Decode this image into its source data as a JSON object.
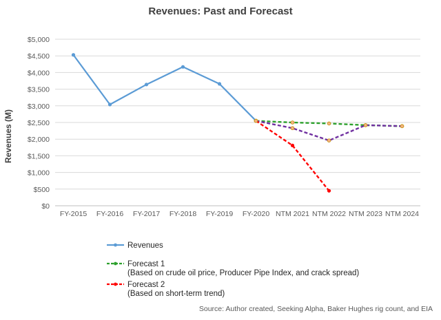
{
  "chart_data": {
    "type": "line",
    "title": "Revenues: Past and Forecast",
    "ylabel": "Revenues (M)",
    "xlabel": "",
    "ylim": [
      0,
      5000
    ],
    "y_ticks": [
      "$0",
      "$500",
      "$1,000",
      "$1,500",
      "$2,000",
      "$2,500",
      "$3,000",
      "$3,500",
      "$4,000",
      "$4,500",
      "$5,000"
    ],
    "categories": [
      "FY-2015",
      "FY-2016",
      "FY-2017",
      "FY-2018",
      "FY-2019",
      "FY-2020",
      "NTM 2021",
      "NTM 2022",
      "NTM 2023",
      "NTM 2024"
    ],
    "grid": "horizontal",
    "legend_position": "bottom",
    "series": [
      {
        "name": "Revenues",
        "color": "#5b9bd5",
        "style": "solid",
        "values": [
          4530,
          3040,
          3640,
          4170,
          3660,
          2550,
          null,
          null,
          null,
          null
        ]
      },
      {
        "name": "Forecast 1",
        "legend_note": "(Based on crude oil price, Producer Pipe Index, and crack spread)",
        "color": "#2ca02c",
        "style": "dashed",
        "values": [
          null,
          null,
          null,
          null,
          null,
          2550,
          2500,
          2470,
          2420,
          2390
        ]
      },
      {
        "name": "Forecast 2",
        "legend_note": "(Based on short-term trend)",
        "color": "#ff0000",
        "style": "dashed",
        "values": [
          null,
          null,
          null,
          null,
          null,
          2550,
          1810,
          450,
          null,
          null
        ]
      },
      {
        "color": "#7030a0",
        "style": "dashed",
        "values": [
          null,
          null,
          null,
          null,
          null,
          2550,
          2330,
          1960,
          2420,
          2390
        ]
      }
    ],
    "source": "Source: Author created, Seeking Alpha, Baker Hughes rig count, and EIA"
  }
}
